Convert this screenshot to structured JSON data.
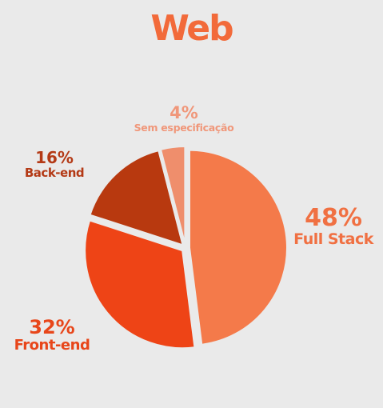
{
  "chart_data": {
    "type": "pie",
    "title": "Web",
    "slices": [
      {
        "label": "Full Stack",
        "value": 48,
        "display": "48%",
        "color": "#f47a4a"
      },
      {
        "label": "Front-end",
        "value": 32,
        "display": "32%",
        "color": "#ee4416"
      },
      {
        "label": "Back-end",
        "value": 16,
        "display": "16%",
        "color": "#b8390f"
      },
      {
        "label": "Sem especificação",
        "value": 4,
        "display": "4%",
        "color": "#ef8e6c"
      }
    ],
    "legend": "none",
    "grid": false
  }
}
